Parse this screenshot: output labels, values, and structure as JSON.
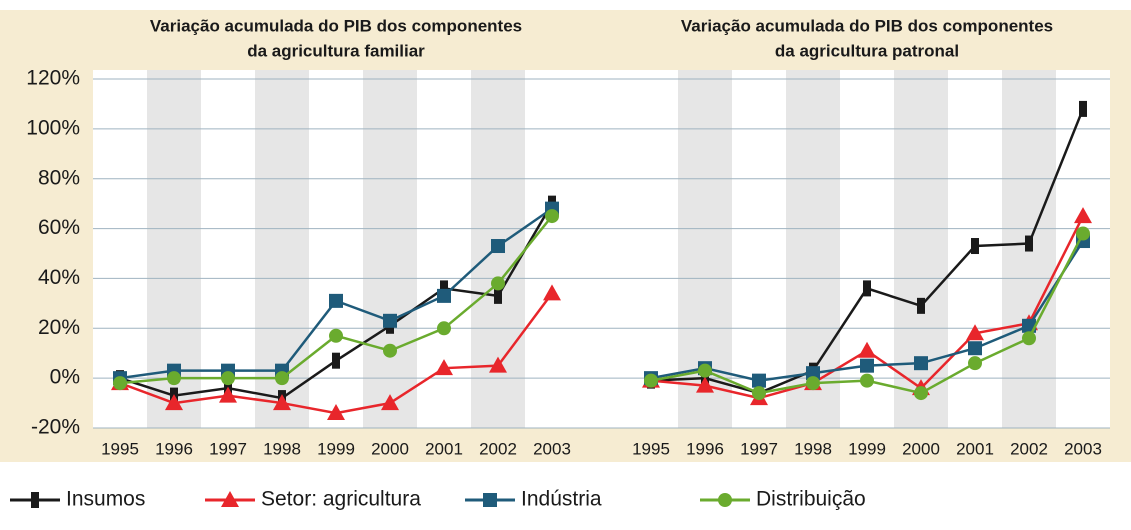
{
  "chart_data": {
    "type": "line",
    "categories": [
      "1995",
      "1996",
      "1997",
      "1998",
      "1999",
      "2000",
      "2001",
      "2002",
      "2003"
    ],
    "ylim": [
      -20,
      120
    ],
    "yticks": [
      {
        "value": -20,
        "label": "-20%"
      },
      {
        "value": 0,
        "label": "0%"
      },
      {
        "value": 20,
        "label": "20%"
      },
      {
        "value": 40,
        "label": "40%"
      },
      {
        "value": 60,
        "label": "60%"
      },
      {
        "value": 80,
        "label": "80%"
      },
      {
        "value": 100,
        "label": "100%"
      },
      {
        "value": 120,
        "label": "120%"
      }
    ],
    "grid": true,
    "legend": [
      {
        "name": "Insumos",
        "color": "#1a1a1a",
        "marker": "bar"
      },
      {
        "name": "Setor: agricultura",
        "color": "#e8262b",
        "marker": "triangle"
      },
      {
        "name": "Indústria",
        "color": "#1f5b7a",
        "marker": "square"
      },
      {
        "name": "Distribuição",
        "color": "#6aab2e",
        "marker": "circle"
      }
    ],
    "panels": [
      {
        "title": [
          "Variação acumulada do PIB dos componentes",
          "da agricultura familiar"
        ],
        "series": [
          {
            "values": [
              0,
              -7,
              -4,
              -8,
              7,
              21,
              36,
              33,
              70
            ]
          },
          {
            "values": [
              -2,
              -10,
              -7,
              -10,
              -14,
              -10,
              4,
              5,
              34
            ]
          },
          {
            "values": [
              0,
              3,
              3,
              3,
              31,
              23,
              33,
              53,
              68
            ]
          },
          {
            "values": [
              -2,
              0,
              0,
              0,
              17,
              11,
              20,
              38,
              65
            ]
          }
        ]
      },
      {
        "title": [
          "Variação acumulada do PIB dos componentes",
          "da agricultura patronal"
        ],
        "series": [
          {
            "values": [
              -1,
              0,
              -6,
              3,
              36,
              29,
              53,
              54,
              108
            ]
          },
          {
            "values": [
              -1,
              -3,
              -8,
              -2,
              11,
              -4,
              18,
              22,
              65
            ]
          },
          {
            "values": [
              0,
              4,
              -1,
              2,
              5,
              6,
              12,
              21,
              55
            ]
          },
          {
            "values": [
              -1,
              3,
              -6,
              -2,
              -1,
              -6,
              6,
              16,
              58
            ]
          }
        ]
      }
    ]
  }
}
